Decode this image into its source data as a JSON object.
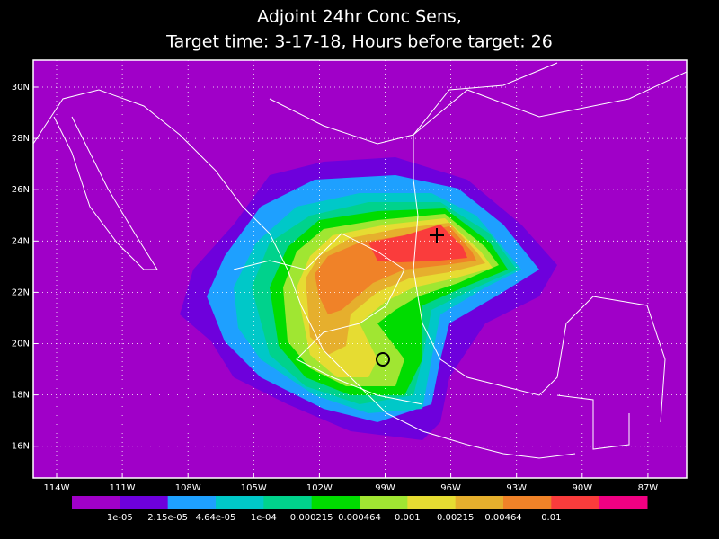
{
  "title": [
    "Adjoint 24hr Conc Sens,",
    "Target time: 3-17-18, Hours before target: 26"
  ],
  "lat_labels": [
    "30N",
    "28N",
    "26N",
    "24N",
    "22N",
    "20N",
    "18N",
    "16N"
  ],
  "lon_labels": [
    "114W",
    "111W",
    "108W",
    "105W",
    "102W",
    "99W",
    "96W",
    "93W",
    "90W",
    "87W"
  ],
  "colorbar": {
    "colors": [
      "#a000c8",
      "#6e00dc",
      "#1ea0ff",
      "#00c8c8",
      "#00d28c",
      "#00dc00",
      "#a0e632",
      "#e6dc32",
      "#e6af2d",
      "#f08228",
      "#fa3c3c",
      "#f00082"
    ],
    "labels": [
      "1e-05",
      "2.15e-05",
      "4.64e-05",
      "1e-04",
      "0.000215",
      "0.000464",
      "0.001",
      "0.00215",
      "0.00464",
      "0.01"
    ]
  }
}
